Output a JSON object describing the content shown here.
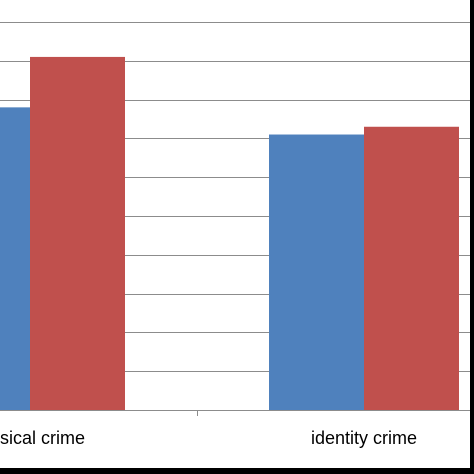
{
  "chart_data": {
    "type": "bar",
    "categories": [
      "sical crime",
      "identity crime"
    ],
    "series": [
      {
        "values": [
          7.8,
          7.1
        ],
        "color": "#4f81bd"
      },
      {
        "values": [
          9.1,
          7.3
        ],
        "color": "#c0504d"
      }
    ],
    "ylim": [
      0,
      10
    ],
    "grid": true,
    "legend": "none",
    "gridline_color": "#8c8c8c",
    "axis_color": "#8c8c8c"
  }
}
